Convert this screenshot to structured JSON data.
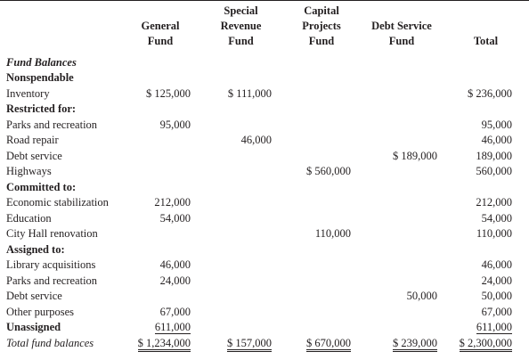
{
  "headers": {
    "general": [
      "General",
      "Fund"
    ],
    "special_revenue": [
      "Special",
      "Revenue",
      "Fund"
    ],
    "capital_projects": [
      "Capital",
      "Projects",
      "Fund"
    ],
    "debt_service": [
      "Debt Service",
      "Fund"
    ],
    "total": [
      "Total"
    ]
  },
  "rows": [
    {
      "label": "Fund Balances",
      "style": "bi"
    },
    {
      "label": "Nonspendable",
      "style": "bold"
    },
    {
      "label": "Inventory",
      "general": "$ 125,000",
      "special_revenue": "$ 111,000",
      "total": "$ 236,000"
    },
    {
      "label": "Restricted for:",
      "style": "bold"
    },
    {
      "label": "Parks and recreation",
      "general": "95,000",
      "total": "95,000"
    },
    {
      "label": "Road repair",
      "special_revenue": "46,000",
      "total": "46,000"
    },
    {
      "label": "Debt service",
      "debt_service": "$ 189,000",
      "total": "189,000"
    },
    {
      "label": "Highways",
      "capital_projects": "$ 560,000",
      "total": "560,000"
    },
    {
      "label": "Committed to:",
      "style": "bold"
    },
    {
      "label": "Economic stabilization",
      "general": "212,000",
      "total": "212,000"
    },
    {
      "label": "Education",
      "general": "54,000",
      "total": "54,000"
    },
    {
      "label": "City Hall renovation",
      "capital_projects": "110,000",
      "total": "110,000"
    },
    {
      "label": "Assigned to:",
      "style": "bold"
    },
    {
      "label": "Library acquisitions",
      "general": "46,000",
      "total": "46,000"
    },
    {
      "label": "Parks and recreation",
      "general": "24,000",
      "total": "24,000"
    },
    {
      "label": "Debt service",
      "debt_service": "50,000",
      "total": "50,000"
    },
    {
      "label": "Other purposes",
      "general": "67,000",
      "total": "67,000"
    },
    {
      "label": "Unassigned",
      "style": "bold",
      "general": "611,000",
      "total": "611,000",
      "underline": true
    },
    {
      "label": "Total fund balances",
      "style": "ital",
      "general": "$ 1,234,000",
      "special_revenue": "$ 157,000",
      "capital_projects": "$ 670,000",
      "debt_service": "$ 239,000",
      "total": "$ 2,300,000",
      "double_underline": true
    }
  ]
}
